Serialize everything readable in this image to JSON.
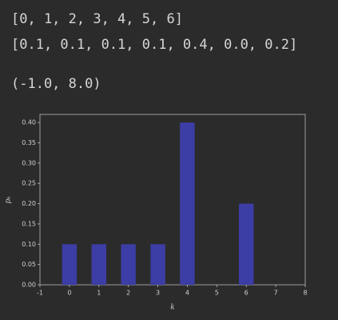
{
  "outputs": [
    "[0, 1, 2, 3, 4, 5, 6]",
    "[0.1, 0.1, 0.1, 0.1, 0.4, 0.0, 0.2]",
    "(-1.0, 8.0)"
  ],
  "chart_data": {
    "type": "bar",
    "x": [
      0,
      1,
      2,
      3,
      4,
      5,
      6
    ],
    "values": [
      0.1,
      0.1,
      0.1,
      0.1,
      0.4,
      0.0,
      0.2
    ],
    "color": "#3d3da6",
    "xlabel": "k",
    "ylabel": "pₖ",
    "xlim": [
      -1,
      8
    ],
    "xticks": [
      -1,
      0,
      1,
      2,
      3,
      4,
      5,
      6,
      7,
      8
    ],
    "ylim": [
      0,
      0.42
    ],
    "yticks": [
      {
        "value": 0,
        "label": "0.00"
      },
      {
        "value": 0.05,
        "label": "0.05"
      },
      {
        "value": 0.1,
        "label": "0.10"
      },
      {
        "value": 0.15,
        "label": "0.15"
      },
      {
        "value": 0.2,
        "label": "0.20"
      },
      {
        "value": 0.25,
        "label": "0.25"
      },
      {
        "value": 0.3,
        "label": "0.30"
      },
      {
        "value": 0.35,
        "label": "0.35"
      },
      {
        "value": 0.4,
        "label": "0.40"
      }
    ]
  }
}
